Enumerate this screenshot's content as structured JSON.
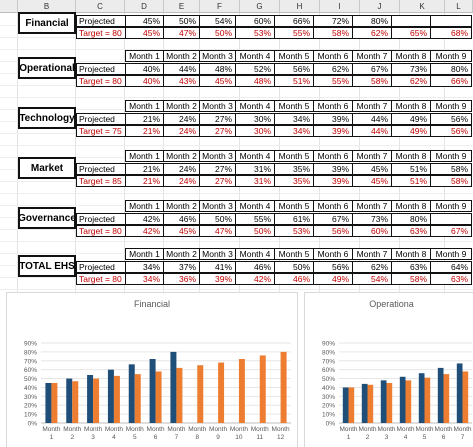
{
  "columns": [
    "B",
    "C",
    "D",
    "E",
    "F",
    "G",
    "H",
    "I",
    "J",
    "K",
    "L"
  ],
  "colors": {
    "projected_bar": "#1f4e79",
    "target_bar": "#ed7d31",
    "header_bg": "#ececec",
    "target_text": "#c00000"
  },
  "month_labels": [
    "Month 1",
    "Month 2",
    "Month 3",
    "Month 4",
    "Month 5",
    "Month 6",
    "Month 7",
    "Month 8",
    "Month 9"
  ],
  "sections": [
    {
      "name": "Financial",
      "show_header": false,
      "projected_label": "Projected",
      "target_label": "Target = 80",
      "projected": [
        "45%",
        "50%",
        "54%",
        "60%",
        "66%",
        "72%",
        "80%",
        "",
        ""
      ],
      "target": [
        "45%",
        "47%",
        "50%",
        "53%",
        "55%",
        "58%",
        "62%",
        "65%",
        "68%"
      ]
    },
    {
      "name": "Operational",
      "show_header": true,
      "projected_label": "Projected",
      "target_label": "Target = 80",
      "projected": [
        "40%",
        "44%",
        "48%",
        "52%",
        "56%",
        "62%",
        "67%",
        "73%",
        "80%"
      ],
      "target": [
        "40%",
        "43%",
        "45%",
        "48%",
        "51%",
        "55%",
        "58%",
        "62%",
        "66%"
      ]
    },
    {
      "name": "Technology",
      "show_header": true,
      "projected_label": "Projected",
      "target_label": "Target = 75",
      "projected": [
        "21%",
        "24%",
        "27%",
        "30%",
        "34%",
        "39%",
        "44%",
        "49%",
        "56%"
      ],
      "target": [
        "21%",
        "24%",
        "27%",
        "30%",
        "34%",
        "39%",
        "44%",
        "49%",
        "56%"
      ]
    },
    {
      "name": "Market",
      "show_header": true,
      "projected_label": "Projected",
      "target_label": "Target = 85",
      "projected": [
        "21%",
        "24%",
        "27%",
        "31%",
        "35%",
        "39%",
        "45%",
        "51%",
        "58%"
      ],
      "target": [
        "21%",
        "24%",
        "27%",
        "31%",
        "35%",
        "39%",
        "45%",
        "51%",
        "58%"
      ]
    },
    {
      "name": "Governance",
      "show_header": true,
      "projected_label": "Projected",
      "target_label": "Target = 80",
      "projected": [
        "42%",
        "46%",
        "50%",
        "55%",
        "61%",
        "67%",
        "73%",
        "80%",
        ""
      ],
      "target": [
        "42%",
        "45%",
        "47%",
        "50%",
        "53%",
        "56%",
        "60%",
        "63%",
        "67%"
      ]
    },
    {
      "name": "TOTAL EHS",
      "show_header": true,
      "projected_label": "Projected",
      "target_label": "Target = 80",
      "projected": [
        "34%",
        "37%",
        "41%",
        "46%",
        "50%",
        "56%",
        "62%",
        "63%",
        "64%"
      ],
      "target": [
        "34%",
        "36%",
        "39%",
        "42%",
        "46%",
        "49%",
        "54%",
        "58%",
        "63%"
      ]
    }
  ],
  "chart_data": [
    {
      "type": "bar",
      "title": "Financial",
      "categories": [
        "Month 1",
        "Month 2",
        "Month 3",
        "Month 4",
        "Month 5",
        "Month 6",
        "Month 7",
        "Month 8",
        "Month 9",
        "Month 10",
        "Month 11",
        "Month 12"
      ],
      "category_lines": [
        [
          "Month",
          "1"
        ],
        [
          "Month",
          "2"
        ],
        [
          "Month",
          "3"
        ],
        [
          "Month",
          "4"
        ],
        [
          "Month",
          "5"
        ],
        [
          "Month",
          "6"
        ],
        [
          "Month",
          "7"
        ],
        [
          "Month",
          "8"
        ],
        [
          "Month",
          "9"
        ],
        [
          "Month",
          "10"
        ],
        [
          "Month",
          "11"
        ],
        [
          "Month",
          "12"
        ]
      ],
      "yticks": [
        "0%",
        "10%",
        "20%",
        "30%",
        "40%",
        "50%",
        "60%",
        "70%",
        "80%",
        "90%"
      ],
      "ylim": [
        0,
        90
      ],
      "grid": true,
      "series": [
        {
          "values": [
            45,
            50,
            54,
            60,
            66,
            72,
            80,
            null,
            null,
            null,
            null,
            null
          ],
          "color": "#1f4e79"
        },
        {
          "values": [
            45,
            47,
            50,
            53,
            55,
            58,
            62,
            65,
            68,
            72,
            76,
            80
          ],
          "color": "#ed7d31"
        }
      ]
    },
    {
      "type": "bar",
      "title": "Operationa",
      "categories": [
        "Month 1",
        "Month 2",
        "Month 3",
        "Month 4",
        "Month 5",
        "Month 6",
        "Month 7"
      ],
      "category_lines": [
        [
          "Month",
          "1"
        ],
        [
          "Month",
          "2"
        ],
        [
          "Month",
          "3"
        ],
        [
          "Month",
          "4"
        ],
        [
          "Month",
          "5"
        ],
        [
          "Month",
          "6"
        ],
        [
          "Month",
          "7"
        ]
      ],
      "yticks": [
        "0%",
        "10%",
        "20%",
        "30%",
        "40%",
        "50%",
        "60%",
        "70%",
        "80%",
        "90%"
      ],
      "ylim": [
        0,
        90
      ],
      "grid": true,
      "series": [
        {
          "values": [
            40,
            44,
            48,
            52,
            56,
            62,
            67
          ],
          "color": "#1f4e79"
        },
        {
          "values": [
            40,
            43,
            45,
            48,
            51,
            55,
            58
          ],
          "color": "#ed7d31"
        }
      ]
    }
  ]
}
